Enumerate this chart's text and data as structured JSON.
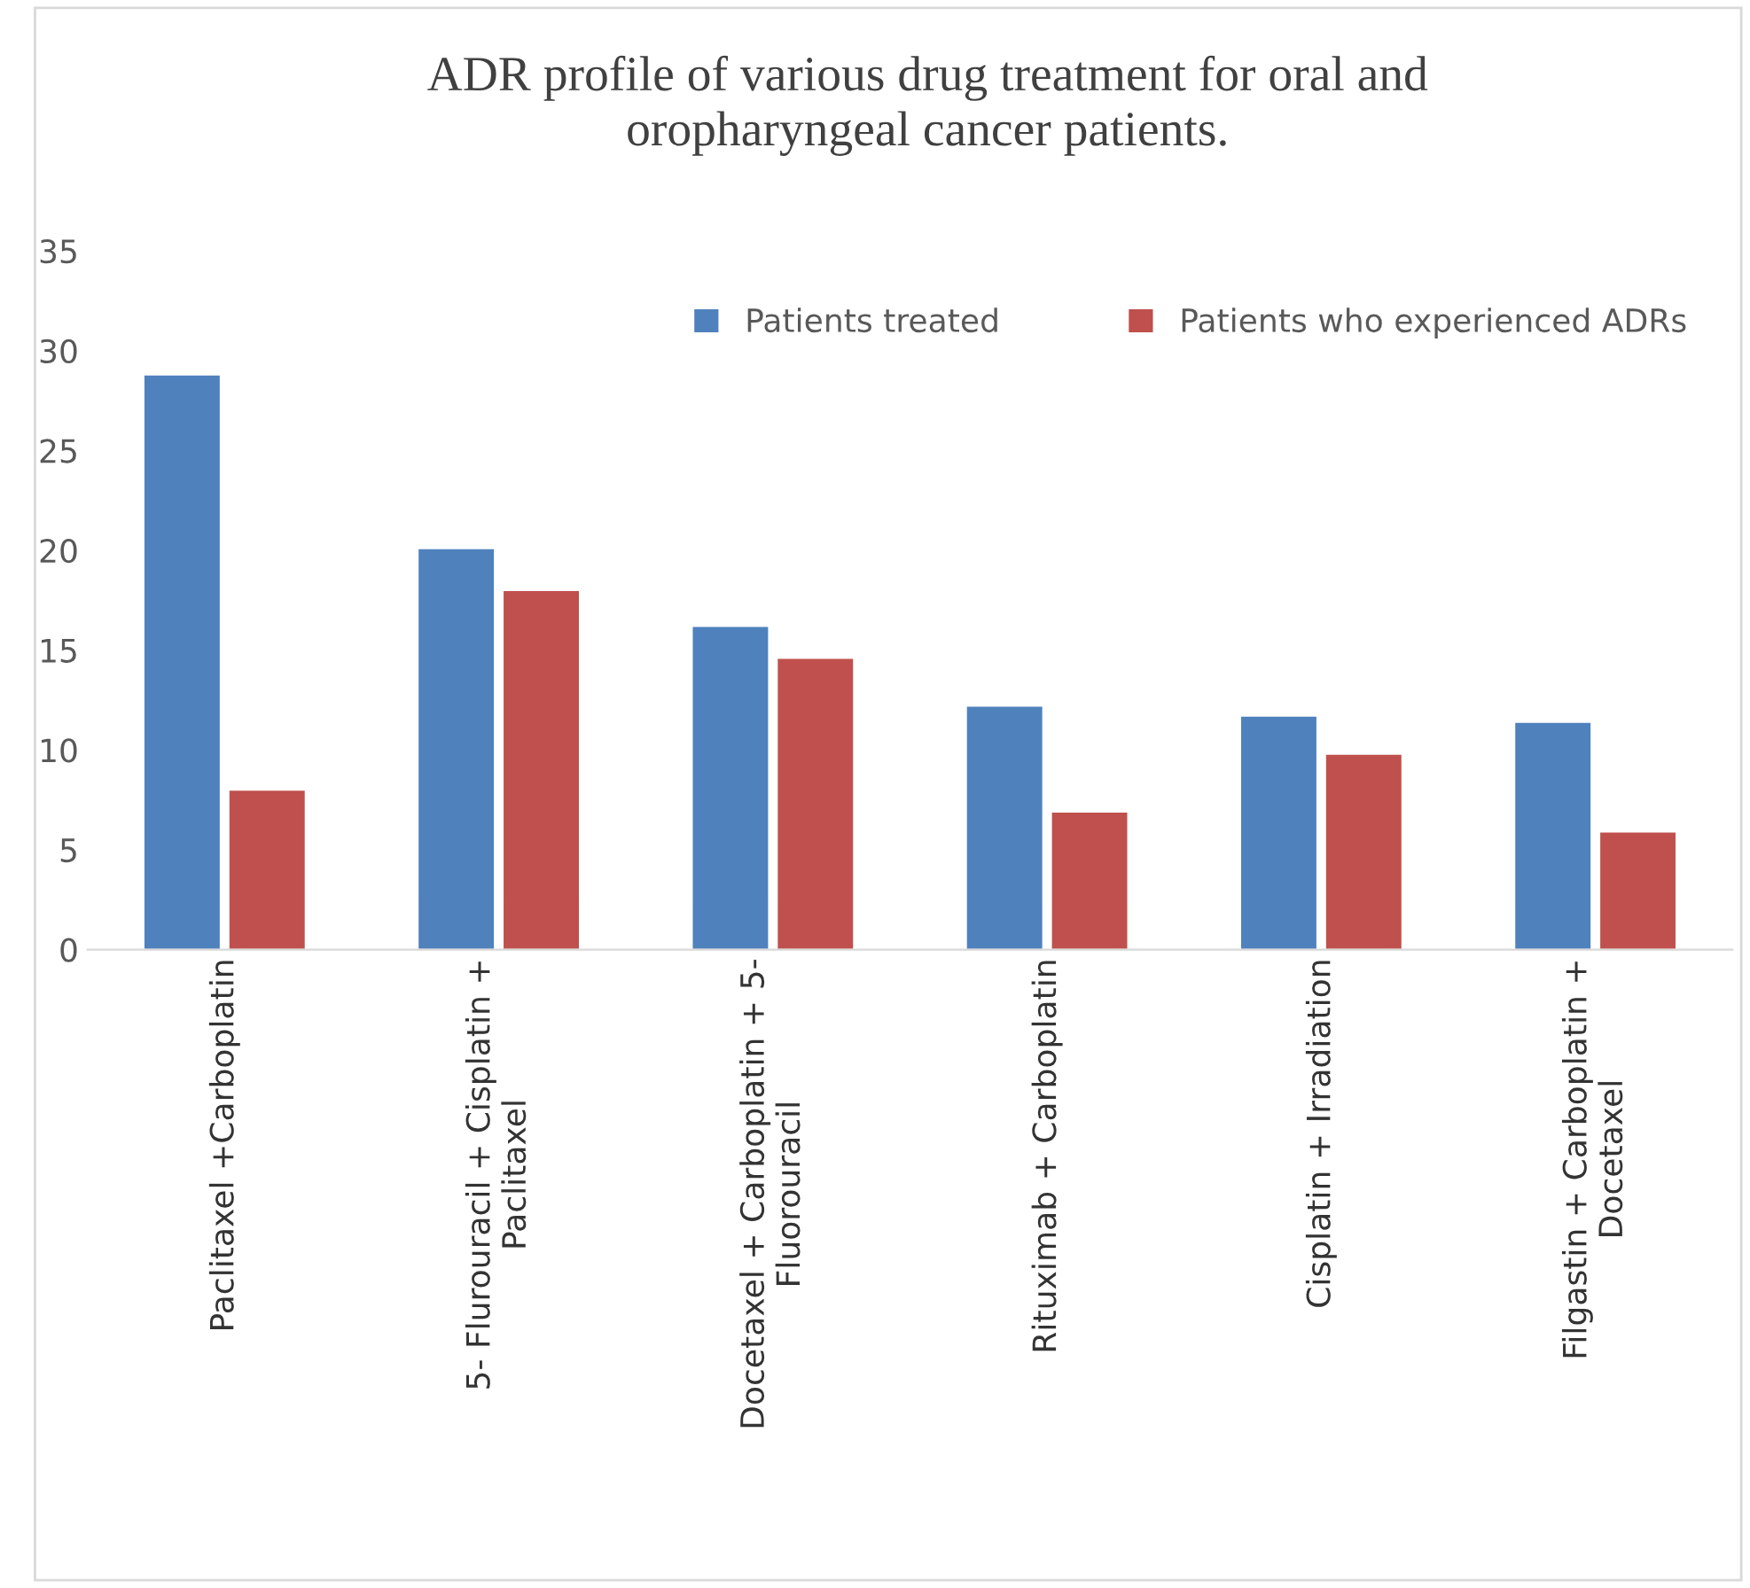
{
  "chart_data": {
    "type": "bar",
    "title": "ADR profile of various drug treatment for oral and\noropharyngeal cancer patients.",
    "categories": [
      "Paclitaxel +Carboplatin",
      "5- Flurouracil + Cisplatin +\nPaclitaxel",
      "Docetaxel + Carboplatin + 5-\nFluorouracil",
      "Rituximab + Carboplatin",
      "Cisplatin + Irradiation",
      "Filgastin + Carboplatin +\nDocetaxel"
    ],
    "series": [
      {
        "name": "Patients treated",
        "color": "#4f81bd",
        "values": [
          28.8,
          20.1,
          16.2,
          12.2,
          11.7,
          11.4
        ]
      },
      {
        "name": "Patients who experienced ADRs",
        "color": "#c0504d",
        "values": [
          8,
          18.0,
          14.6,
          6.9,
          9.8,
          5.9
        ]
      }
    ],
    "ylim": [
      0,
      35
    ],
    "yticks": [
      0,
      5,
      10,
      15,
      20,
      25,
      30,
      35
    ],
    "grid": false,
    "legend": "top right"
  }
}
